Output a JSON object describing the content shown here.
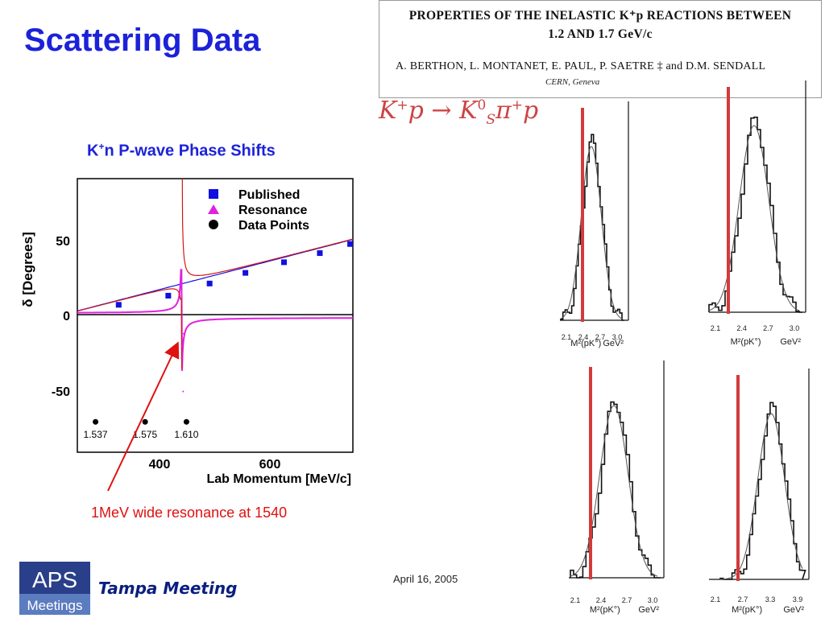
{
  "slide": {
    "title": "Scattering Data",
    "date": "April 16, 2005",
    "meeting": "Tampa Meeting",
    "logo_text_top": "APS",
    "logo_text_bottom": "Meetings"
  },
  "paper": {
    "title_line1": "PROPERTIES OF THE INELASTIC K⁺p REACTIONS BETWEEN",
    "title_line2": "1.2 AND 1.7 GeV/c",
    "authors": "A. BERTHON, L. MONTANET, E. PAUL, P. SAETRE ‡ and D.M. SENDALL",
    "institution": "CERN, Geneva",
    "reaction": "K+p → K0S π+p"
  },
  "plot": {
    "title_main": "K",
    "title_sup": "+",
    "title_rest": "n P-wave Phase Shifts",
    "ylabel": "δ [Degrees]",
    "xlabel": "Lab Momentum [MeV/c]",
    "yticks": [
      "50",
      "0",
      "-50"
    ],
    "xticks": [
      "400",
      "600"
    ],
    "legend": [
      {
        "label": "Published",
        "color": "#1010e0",
        "marker": "square"
      },
      {
        "label": "Resonance",
        "color": "#e020e0",
        "marker": "triangle"
      },
      {
        "label": "Data Points",
        "color": "#000000",
        "marker": "circle"
      }
    ],
    "data_point_labels": [
      "1.537",
      "1.575",
      "1.610"
    ],
    "annotation": "1MeV wide resonance at 1540",
    "colors": {
      "published": "#1010e0",
      "resonance": "#e020e0",
      "total": "#d01818",
      "arrow": "#e01010",
      "frame": "#000000"
    }
  },
  "chart_data": {
    "type": "line",
    "title": "K+n P-wave Phase Shifts",
    "xlabel": "Lab Momentum [MeV/c]",
    "ylabel": "δ [Degrees]",
    "xlim": [
      250,
      750
    ],
    "ylim": [
      -90,
      90
    ],
    "series": [
      {
        "name": "Published",
        "x": [
          325,
          415,
          490,
          555,
          625,
          690,
          745
        ],
        "y": [
          7,
          13,
          21,
          28,
          35,
          41,
          47
        ]
      }
    ],
    "points": [
      {
        "x": 283,
        "y": -70,
        "label": "1.537"
      },
      {
        "x": 373,
        "y": -70,
        "label": "1.575"
      },
      {
        "x": 448,
        "y": -70,
        "label": "1.610"
      }
    ]
  },
  "histograms": {
    "panels": [
      {
        "ticks": [
          "2.1",
          "2.4",
          "2.7",
          "3.0"
        ],
        "axis_label": "M²(pK°)",
        "unit": "GeV²"
      },
      {
        "ticks": [
          "2.1",
          "2.4",
          "2.7",
          "3.0"
        ],
        "axis_label": "M²(pK°)",
        "unit": "GeV²"
      },
      {
        "ticks": [
          "2.1",
          "2.4",
          "2.7",
          "3.0"
        ],
        "axis_label": "M²(pK°)",
        "unit": "GeV²"
      },
      {
        "ticks": [
          "2.1",
          "2.7",
          "3.3",
          "3.9"
        ],
        "axis_label": "M²(pK°)",
        "unit": "GeV²"
      }
    ],
    "marker_color": "#d43a3a"
  }
}
